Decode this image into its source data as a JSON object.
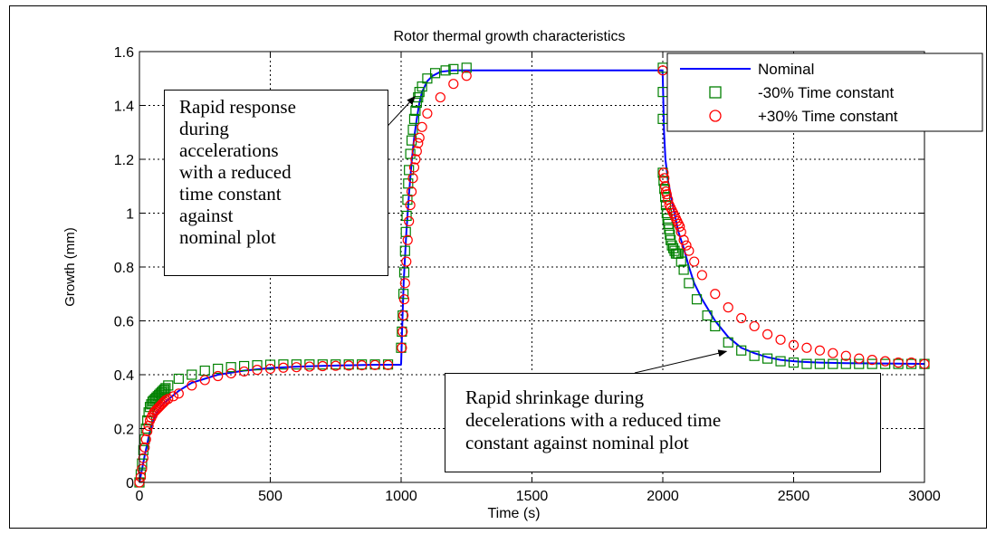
{
  "chart_data": {
    "type": "line",
    "title": "Rotor thermal growth characteristics",
    "xlabel": "Time (s)",
    "ylabel": "Growth (mm)",
    "xlim": [
      0,
      3000
    ],
    "ylim": [
      0,
      1.6
    ],
    "xticks": [
      0,
      500,
      1000,
      1500,
      2000,
      2500,
      3000
    ],
    "yticks": [
      0,
      0.2,
      0.4,
      0.6,
      0.8,
      1,
      1.2,
      1.4,
      1.6
    ],
    "xtick_labels": [
      "0",
      "500",
      "1000",
      "1500",
      "2000",
      "2500",
      "3000"
    ],
    "ytick_labels": [
      "0",
      "0.2",
      "0.4",
      "0.6",
      "0.8",
      "1",
      "1.2",
      "1.4",
      "1.6"
    ],
    "grid": true,
    "grid_style": "dotted",
    "legend_position": "top-right",
    "series": [
      {
        "name": "Nominal",
        "style": "line",
        "color": "#0000ff",
        "x": [
          0,
          20,
          40,
          60,
          80,
          100,
          150,
          200,
          300,
          400,
          500,
          600,
          700,
          800,
          900,
          999,
          1000,
          1005,
          1010,
          1020,
          1030,
          1040,
          1050,
          1060,
          1070,
          1080,
          1100,
          1120,
          1150,
          1200,
          1250,
          1300,
          1500,
          1700,
          1900,
          1999,
          2000,
          2005,
          2010,
          2020,
          2040,
          2060,
          2080,
          2100,
          2120,
          2150,
          2200,
          2250,
          2300,
          2350,
          2400,
          2450,
          2500,
          2550,
          2600,
          2700,
          2800,
          2900,
          3000
        ],
        "y": [
          0,
          0.1,
          0.19,
          0.25,
          0.28,
          0.3,
          0.34,
          0.37,
          0.4,
          0.415,
          0.425,
          0.43,
          0.433,
          0.435,
          0.437,
          0.437,
          0.44,
          0.6,
          0.75,
          0.93,
          1.07,
          1.19,
          1.28,
          1.35,
          1.41,
          1.45,
          1.49,
          1.51,
          1.525,
          1.53,
          1.53,
          1.53,
          1.53,
          1.53,
          1.53,
          1.53,
          1.5,
          1.3,
          1.2,
          1.12,
          1.02,
          0.93,
          0.87,
          0.8,
          0.74,
          0.68,
          0.6,
          0.54,
          0.5,
          0.48,
          0.465,
          0.455,
          0.45,
          0.447,
          0.445,
          0.443,
          0.442,
          0.441,
          0.44
        ]
      },
      {
        "name": "-30% Time constant",
        "style": "square",
        "color": "#008000",
        "x": [
          0,
          5,
          10,
          15,
          20,
          25,
          30,
          35,
          40,
          45,
          50,
          55,
          60,
          65,
          70,
          75,
          80,
          85,
          90,
          95,
          100,
          110,
          150,
          200,
          250,
          300,
          350,
          400,
          450,
          500,
          550,
          600,
          650,
          700,
          750,
          800,
          850,
          900,
          950,
          1000,
          1003,
          1006,
          1009,
          1012,
          1015,
          1018,
          1021,
          1024,
          1027,
          1030,
          1035,
          1040,
          1045,
          1050,
          1055,
          1060,
          1065,
          1070,
          1080,
          1100,
          1130,
          1170,
          1200,
          1250,
          2000,
          2000,
          2000,
          2000,
          2003,
          2006,
          2009,
          2012,
          2015,
          2018,
          2021,
          2024,
          2027,
          2030,
          2035,
          2040,
          2045,
          2050,
          2055,
          2060,
          2070,
          2080,
          2100,
          2130,
          2170,
          2200,
          2250,
          2300,
          2350,
          2400,
          2450,
          2500,
          2550,
          2600,
          2650,
          2700,
          2750,
          2800,
          2850,
          2900,
          2950,
          3000
        ],
        "y": [
          0,
          0.03,
          0.07,
          0.12,
          0.16,
          0.2,
          0.23,
          0.26,
          0.28,
          0.29,
          0.3,
          0.305,
          0.31,
          0.315,
          0.32,
          0.325,
          0.33,
          0.335,
          0.34,
          0.345,
          0.35,
          0.36,
          0.385,
          0.4,
          0.415,
          0.422,
          0.428,
          0.432,
          0.435,
          0.437,
          0.438,
          0.438,
          0.438,
          0.438,
          0.438,
          0.438,
          0.438,
          0.438,
          0.438,
          0.5,
          0.56,
          0.62,
          0.7,
          0.78,
          0.86,
          0.93,
          0.99,
          1.05,
          1.11,
          1.16,
          1.22,
          1.27,
          1.31,
          1.35,
          1.38,
          1.41,
          1.43,
          1.45,
          1.47,
          1.5,
          1.52,
          1.53,
          1.535,
          1.54,
          1.54,
          1.45,
          1.35,
          1.15,
          1.12,
          1.09,
          1.06,
          1.03,
          1.0,
          0.98,
          0.96,
          0.94,
          0.92,
          0.9,
          0.88,
          0.87,
          0.86,
          0.85,
          0.85,
          0.85,
          0.82,
          0.79,
          0.74,
          0.68,
          0.62,
          0.58,
          0.52,
          0.49,
          0.47,
          0.46,
          0.45,
          0.445,
          0.44,
          0.44,
          0.44,
          0.44,
          0.44,
          0.44,
          0.44,
          0.44,
          0.44,
          0.44
        ]
      },
      {
        "name": "+30% Time constant",
        "style": "circle",
        "color": "#ff0000",
        "x": [
          0,
          5,
          10,
          15,
          20,
          25,
          30,
          35,
          40,
          45,
          50,
          55,
          60,
          65,
          70,
          75,
          80,
          85,
          90,
          95,
          100,
          110,
          130,
          150,
          200,
          250,
          300,
          350,
          400,
          450,
          500,
          550,
          600,
          650,
          700,
          750,
          800,
          850,
          900,
          950,
          1003,
          1006,
          1009,
          1012,
          1015,
          1020,
          1025,
          1030,
          1035,
          1040,
          1045,
          1050,
          1055,
          1060,
          1065,
          1070,
          1080,
          1100,
          1150,
          1200,
          1250,
          2000,
          2003,
          2006,
          2009,
          2012,
          2015,
          2020,
          2025,
          2030,
          2035,
          2040,
          2045,
          2050,
          2055,
          2060,
          2065,
          2070,
          2080,
          2090,
          2100,
          2120,
          2150,
          2200,
          2250,
          2300,
          2350,
          2400,
          2450,
          2500,
          2550,
          2600,
          2650,
          2700,
          2750,
          2800,
          2850,
          2900,
          2950,
          3000
        ],
        "y": [
          0,
          0.02,
          0.05,
          0.09,
          0.13,
          0.16,
          0.19,
          0.21,
          0.23,
          0.24,
          0.25,
          0.26,
          0.265,
          0.27,
          0.275,
          0.28,
          0.285,
          0.29,
          0.295,
          0.3,
          0.305,
          0.31,
          0.32,
          0.33,
          0.36,
          0.38,
          0.395,
          0.405,
          0.412,
          0.418,
          0.422,
          0.426,
          0.428,
          0.43,
          0.432,
          0.433,
          0.434,
          0.435,
          0.436,
          0.436,
          0.5,
          0.56,
          0.62,
          0.68,
          0.74,
          0.82,
          0.9,
          0.97,
          1.03,
          1.08,
          1.13,
          1.17,
          1.2,
          1.23,
          1.26,
          1.28,
          1.32,
          1.37,
          1.43,
          1.48,
          1.51,
          1.53,
          1.15,
          1.13,
          1.1,
          1.08,
          1.07,
          1.05,
          1.03,
          1.02,
          1.01,
          1.0,
          0.99,
          0.98,
          0.97,
          0.96,
          0.95,
          0.93,
          0.9,
          0.88,
          0.86,
          0.82,
          0.77,
          0.7,
          0.65,
          0.61,
          0.58,
          0.55,
          0.53,
          0.51,
          0.5,
          0.49,
          0.48,
          0.47,
          0.46,
          0.455,
          0.45,
          0.445,
          0.445,
          0.44
        ]
      }
    ],
    "annotations": [
      {
        "id": "accel",
        "text": "Rapid response\nduring\naccelerations\nwith a reduced\ntime constant\nagainst\nnominal plot",
        "arrow_to": [
          1060,
          1.44
        ]
      },
      {
        "id": "decel",
        "text": "Rapid shrinkage during\ndecelerations with a reduced time\nconstant against nominal plot",
        "arrow_to": [
          2250,
          0.5
        ]
      }
    ]
  }
}
